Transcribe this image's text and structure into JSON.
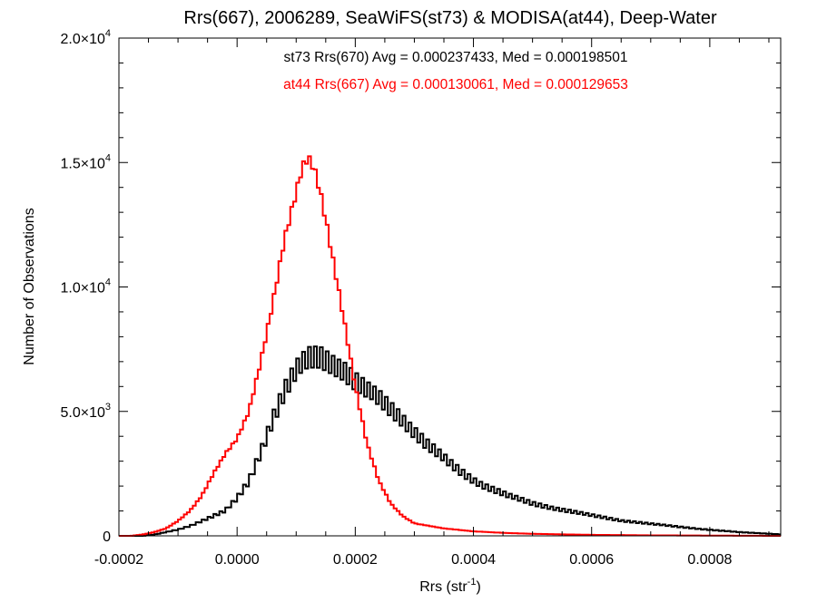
{
  "chart_data": {
    "type": "histogram",
    "title": "Rrs(667), 2006289, SeaWiFS(st73) & MODISA(at44), Deep-Water",
    "xlabel": {
      "base": "Rrs (str",
      "sup": "-1",
      "tail": ")"
    },
    "ylabel": "Number of Observations",
    "xlim": [
      -0.0002,
      0.00092
    ],
    "ylim": [
      0,
      20000
    ],
    "bin_width": 5e-06,
    "x_ticks": [
      {
        "value": -0.0002,
        "label": "-0.0002"
      },
      {
        "value": 0.0,
        "label": "0.0000"
      },
      {
        "value": 0.0002,
        "label": "0.0002"
      },
      {
        "value": 0.0004,
        "label": "0.0004"
      },
      {
        "value": 0.0006,
        "label": "0.0006"
      },
      {
        "value": 0.0008,
        "label": "0.0008"
      }
    ],
    "y_ticks": [
      {
        "value": 0,
        "mant": "0",
        "exp": ""
      },
      {
        "value": 5000,
        "mant": "5.0×10",
        "exp": "3"
      },
      {
        "value": 10000,
        "mant": "1.0×10",
        "exp": "4"
      },
      {
        "value": 15000,
        "mant": "1.5×10",
        "exp": "4"
      },
      {
        "value": 20000,
        "mant": "2.0×10",
        "exp": "4"
      }
    ],
    "grid": false,
    "colors": {
      "st73": "#000000",
      "at44": "#ff0000"
    },
    "annotations": [
      {
        "id": "st73",
        "text": "st73 Rrs(670) Avg = 0.000237433, Med = 0.000198501",
        "color": "#000000"
      },
      {
        "id": "at44",
        "text": "at44 Rrs(667) Avg = 0.000130061, Med = 0.000129653",
        "color": "#ff0000"
      }
    ],
    "series": [
      {
        "name": "at44",
        "color": "#ff0000",
        "x": [
          -0.0002,
          -0.00018,
          -0.00016,
          -0.00014,
          -0.00012,
          -0.0001,
          -8e-05,
          -6e-05,
          -4e-05,
          -2e-05,
          0.0,
          2e-05,
          4e-05,
          6e-05,
          8e-05,
          0.0001,
          0.00011,
          0.00012,
          0.00013,
          0.00014,
          0.00015,
          0.00016,
          0.00018,
          0.0002,
          0.00022,
          0.00024,
          0.00026,
          0.00028,
          0.0003,
          0.00035,
          0.0004,
          0.00045,
          0.0005,
          0.0006,
          0.0007,
          0.0008,
          0.00092
        ],
        "y": [
          0,
          0,
          50,
          150,
          300,
          600,
          1000,
          1600,
          2500,
          3300,
          3900,
          5000,
          7000,
          9300,
          11900,
          13800,
          14800,
          15200,
          14800,
          13900,
          12700,
          11400,
          8800,
          6000,
          3700,
          2200,
          1300,
          800,
          500,
          300,
          180,
          120,
          80,
          40,
          20,
          10,
          0
        ]
      },
      {
        "name": "st73",
        "color": "#000000",
        "x": [
          -0.0002,
          -0.00018,
          -0.00016,
          -0.00014,
          -0.00012,
          -0.0001,
          -8e-05,
          -6e-05,
          -4e-05,
          -2e-05,
          0.0,
          2e-05,
          4e-05,
          6e-05,
          8e-05,
          0.0001,
          0.00012,
          0.00014,
          0.00016,
          0.00018,
          0.0002,
          0.00022,
          0.00024,
          0.00026,
          0.00028,
          0.0003,
          0.00032,
          0.00034,
          0.00036,
          0.00038,
          0.0004,
          0.00042,
          0.00044,
          0.00046,
          0.00048,
          0.0005,
          0.00055,
          0.0006,
          0.00065,
          0.0007,
          0.00075,
          0.0008,
          0.00085,
          0.00092
        ],
        "y": [
          0,
          0,
          0,
          50,
          150,
          250,
          400,
          600,
          800,
          1000,
          1500,
          2200,
          3400,
          4700,
          5800,
          6600,
          7100,
          7200,
          7000,
          6700,
          6200,
          5800,
          5500,
          5100,
          4700,
          4200,
          3700,
          3300,
          2900,
          2550,
          2250,
          2000,
          1800,
          1600,
          1450,
          1300,
          1050,
          820,
          620,
          480,
          360,
          240,
          150,
          60
        ]
      }
    ]
  }
}
